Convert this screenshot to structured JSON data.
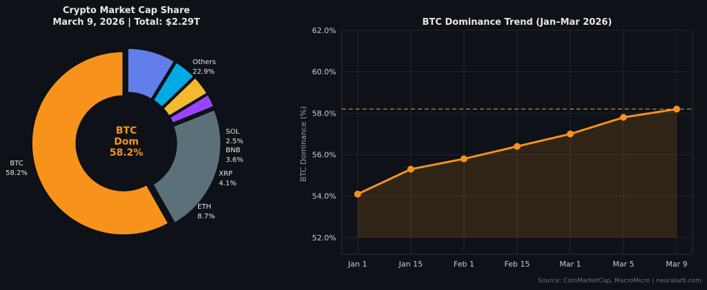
{
  "colors": {
    "background": "#0e1117",
    "btc": "#f7931a",
    "others": "#5b7079",
    "sol": "#9945ff",
    "bnb": "#f3ba2f",
    "xrp": "#00aae4",
    "eth": "#627eea",
    "line": "#f7931a",
    "dashed": "#c98a2a",
    "grid": "#22262e",
    "text": "#e6e6e6",
    "muted": "#9aa0a6",
    "source": "#6b7280"
  },
  "source_note": "Source: CoinMarketCap, MacroMicro | neuralarb.com",
  "chart_data": [
    {
      "type": "pie",
      "title": "Crypto Market Cap Share",
      "subtitle": "March 9, 2026 | Total: $2.29T",
      "center_label": [
        "BTC",
        "Dom",
        "58.2%"
      ],
      "slices": [
        {
          "label": "BTC",
          "value": 58.2,
          "value_label": "58.2%",
          "color": "#f7931a"
        },
        {
          "label": "Others",
          "value": 22.9,
          "value_label": "22.9%",
          "color": "#5b7079"
        },
        {
          "label": "SOL",
          "value": 2.5,
          "value_label": "2.5%",
          "color": "#9945ff"
        },
        {
          "label": "BNB",
          "value": 3.6,
          "value_label": "3.6%",
          "color": "#f3ba2f"
        },
        {
          "label": "XRP",
          "value": 4.1,
          "value_label": "4.1%",
          "color": "#00aae4"
        },
        {
          "label": "ETH",
          "value": 8.7,
          "value_label": "8.7%",
          "color": "#627eea"
        }
      ]
    },
    {
      "type": "line",
      "title": "BTC Dominance Trend (Jan–Mar 2026)",
      "ylabel": "BTC Dominance (%)",
      "xlabel": "",
      "categories": [
        "Jan 1",
        "Jan 15",
        "Feb 1",
        "Feb 15",
        "Mar 1",
        "Mar 5",
        "Mar 9"
      ],
      "values": [
        54.1,
        55.3,
        55.8,
        56.4,
        57.0,
        57.8,
        58.2
      ],
      "ylim": [
        51.2,
        62.0
      ],
      "yticks": [
        52.0,
        54.0,
        56.0,
        58.0,
        60.0,
        62.0
      ],
      "ytick_labels": [
        "52.0%",
        "54.0%",
        "56.0%",
        "58.0%",
        "60.0%",
        "62.0%"
      ],
      "reference_line": 58.2,
      "fill_baseline": 52.0,
      "grid": true
    }
  ]
}
